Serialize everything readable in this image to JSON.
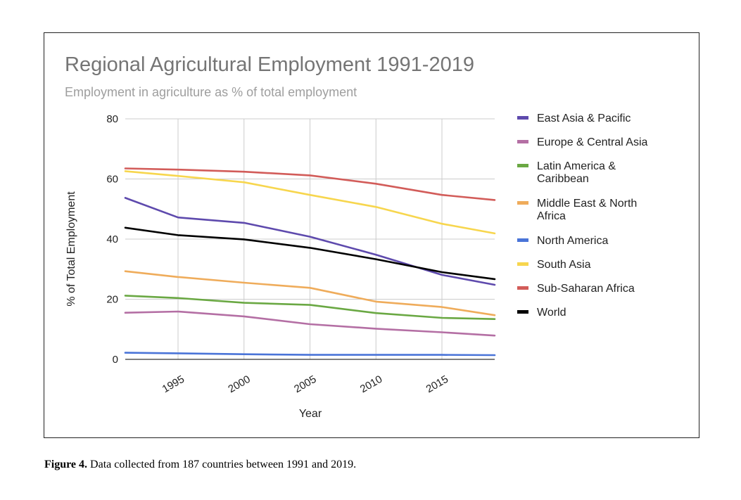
{
  "chart_data": {
    "type": "line",
    "title": "Regional Agricultural Employment 1991-2019",
    "subtitle": "Employment in agriculture as % of total employment",
    "xlabel": "Year",
    "ylabel": "% of Total Employment",
    "xlim": [
      1991,
      2019
    ],
    "ylim": [
      0,
      80
    ],
    "yticks": [
      0,
      20,
      40,
      60,
      80
    ],
    "xticks": [
      1995,
      2000,
      2005,
      2010,
      2015
    ],
    "grid": true,
    "legend_position": "right",
    "x": [
      1991,
      1995,
      2000,
      2005,
      2010,
      2015,
      2019
    ],
    "series": [
      {
        "name": "East Asia & Pacific",
        "color": "#5e4aad",
        "values": [
          53.7,
          47.2,
          45.4,
          40.8,
          34.8,
          28.1,
          24.8
        ]
      },
      {
        "name": "Europe & Central Asia",
        "color": "#b46fa4",
        "values": [
          15.5,
          15.9,
          14.3,
          11.7,
          10.2,
          9.0,
          7.9
        ]
      },
      {
        "name": "Latin America & Caribbean",
        "color": "#6aa843",
        "values": [
          21.2,
          20.4,
          18.8,
          18.1,
          15.4,
          13.8,
          13.4
        ]
      },
      {
        "name": "Middle East & North Africa",
        "color": "#efac5b",
        "values": [
          29.3,
          27.4,
          25.5,
          23.8,
          19.2,
          17.4,
          14.7
        ]
      },
      {
        "name": "North America",
        "color": "#4a74d8",
        "values": [
          2.2,
          2.0,
          1.7,
          1.5,
          1.5,
          1.5,
          1.4
        ]
      },
      {
        "name": "South Asia",
        "color": "#f7d64e",
        "values": [
          62.6,
          61.0,
          58.9,
          54.7,
          50.7,
          45.1,
          41.9
        ]
      },
      {
        "name": "Sub-Saharan Africa",
        "color": "#d25c59",
        "values": [
          63.5,
          63.1,
          62.4,
          61.2,
          58.4,
          54.7,
          53.0
        ]
      },
      {
        "name": "World",
        "color": "#000000",
        "values": [
          43.8,
          41.3,
          39.9,
          37.1,
          33.3,
          29.0,
          26.7
        ]
      }
    ]
  },
  "caption": {
    "label": "Figure 4.",
    "text": " Data collected from 187 countries between 1991 and 2019."
  }
}
